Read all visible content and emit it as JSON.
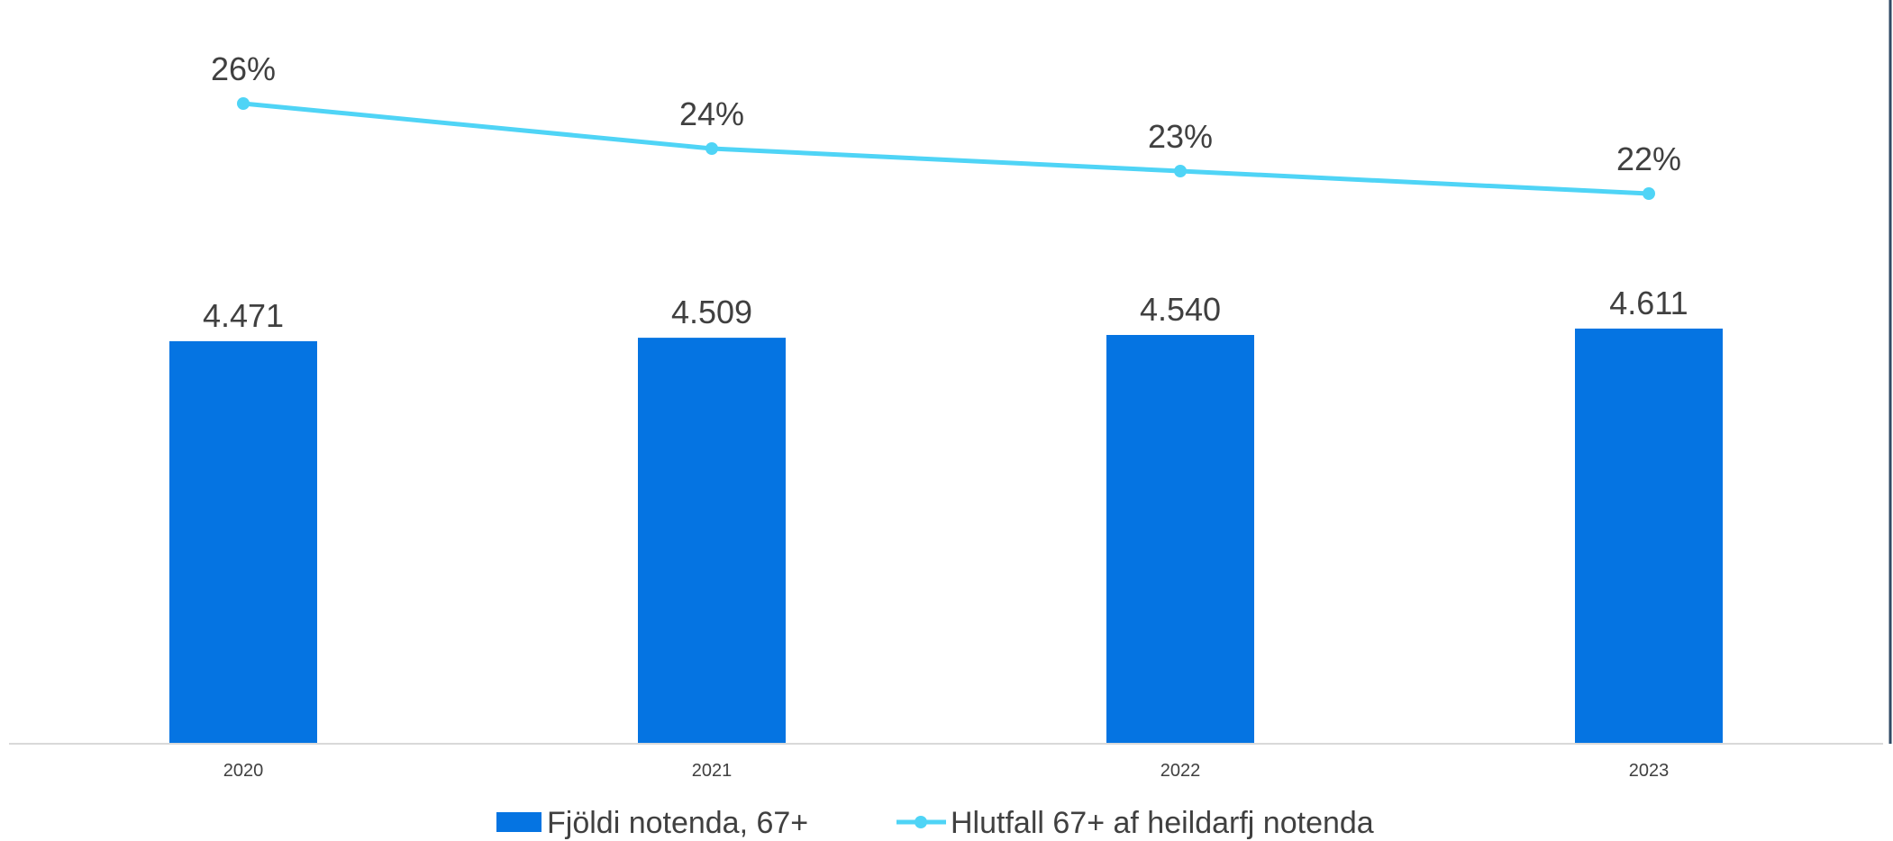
{
  "chart_data": {
    "type": "bar",
    "categories": [
      "2020",
      "2021",
      "2022",
      "2023"
    ],
    "series": [
      {
        "name": "Fjöldi notenda, 67+",
        "kind": "bar",
        "values": [
          4471,
          4509,
          4540,
          4611
        ],
        "labels": [
          "4.471",
          "4.509",
          "4.540",
          "4.611"
        ],
        "color": "#0574E2"
      },
      {
        "name": "Hlutfall 67+ af heildarfj notenda",
        "kind": "line",
        "values": [
          26,
          24,
          23,
          22
        ],
        "labels": [
          "26%",
          "24%",
          "23%",
          "22%"
        ],
        "color": "#4FD4F6"
      }
    ],
    "legend_position": "bottom",
    "grid": false
  }
}
